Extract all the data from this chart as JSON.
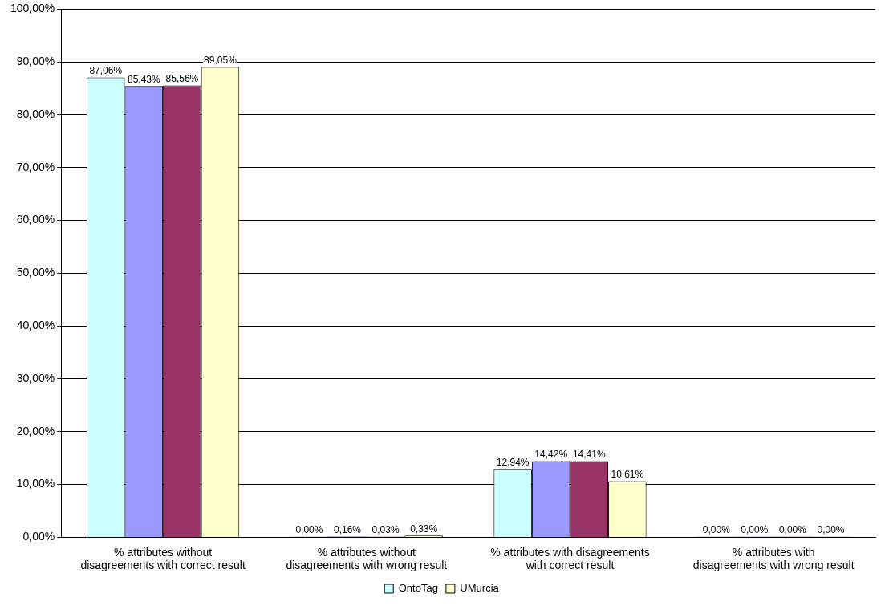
{
  "chart_data": {
    "type": "bar",
    "categories": [
      "% attributes without disagreements with correct result",
      "% attributes without disagreements with wrong result",
      "% attributes with disagreements with correct result",
      "% attributes with disagreements with wrong result"
    ],
    "series": [
      {
        "name": "OntoTag",
        "color": "#ccffff",
        "values": [
          87.06,
          0,
          12.94,
          0
        ],
        "value_labels": [
          "87,06%",
          "0,00%",
          "12,94%",
          "0,00%"
        ]
      },
      {
        "color": "#9999ff",
        "values": [
          85.43,
          0.16,
          14.42,
          0
        ],
        "value_labels": [
          "85,43%",
          "0,16%",
          "14,42%",
          "0,00%"
        ]
      },
      {
        "color": "#993366",
        "values": [
          85.56,
          0.03,
          14.41,
          0
        ],
        "value_labels": [
          "85,56%",
          "0,03%",
          "14,41%",
          "0,00%"
        ]
      },
      {
        "name": "UMurcia",
        "color": "#ffffcc",
        "values": [
          89.05,
          0.33,
          10.61,
          0
        ],
        "value_labels": [
          "89,05%",
          "0,33%",
          "10,61%",
          "0,00%"
        ]
      }
    ],
    "ylim": [
      0,
      100
    ],
    "yticks": [
      {
        "value": 0,
        "label": "0,00%"
      },
      {
        "value": 10,
        "label": "10,00%"
      },
      {
        "value": 20,
        "label": "20,00%"
      },
      {
        "value": 30,
        "label": "30,00%"
      },
      {
        "value": 40,
        "label": "40,00%"
      },
      {
        "value": 50,
        "label": "50,00%"
      },
      {
        "value": 60,
        "label": "60,00%"
      },
      {
        "value": 70,
        "label": "70,00%"
      },
      {
        "value": 80,
        "label": "80,00%"
      },
      {
        "value": 90,
        "label": "90,00%"
      },
      {
        "value": 100,
        "label": "100,00%"
      }
    ],
    "grid": "y",
    "legend": "bottom"
  }
}
